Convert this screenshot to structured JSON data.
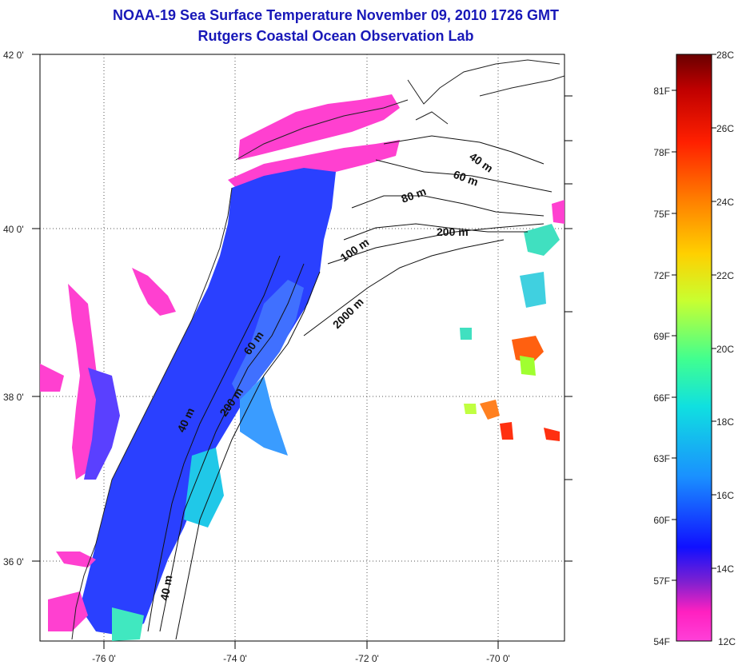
{
  "title": {
    "line1": "NOAA-19 Sea Surface Temperature November 09, 2010 1726 GMT",
    "line2": "Rutgers Coastal Ocean Observation Lab"
  },
  "map": {
    "lat_labels": [
      "42 0'",
      "40 0'",
      "38 0'",
      "36 0'"
    ],
    "lon_labels": [
      "-76 0'",
      "-74 0'",
      "-72 0'",
      "-70 0'"
    ],
    "contour_labels": [
      "40 m",
      "60 m",
      "80 m",
      "200 m",
      "100 m",
      "2000 m",
      "60 m",
      "200 m",
      "40 m",
      "40 m"
    ]
  },
  "colorbar": {
    "celsius_labels": [
      "28C",
      "26C",
      "24C",
      "22C",
      "20C",
      "18C",
      "16C",
      "14C",
      "12C"
    ],
    "fahrenheit_labels": [
      "81F",
      "78F",
      "75F",
      "72F",
      "69F",
      "66F",
      "63F",
      "60F",
      "57F",
      "54F"
    ],
    "colors": [
      "#7a0000",
      "#c00000",
      "#ff3000",
      "#ff8c00",
      "#ffd800",
      "#c8ff30",
      "#40ff90",
      "#10e8e0",
      "#1a90ff",
      "#0a30ff",
      "#1010e0",
      "#9020d0",
      "#ff20c0",
      "#ff40e0"
    ]
  },
  "colors": {
    "title": "#1818b8",
    "cold": "#ff30d0",
    "cool": "#2040ff",
    "mid": "#20c0e0",
    "warm": "#ff5010"
  }
}
